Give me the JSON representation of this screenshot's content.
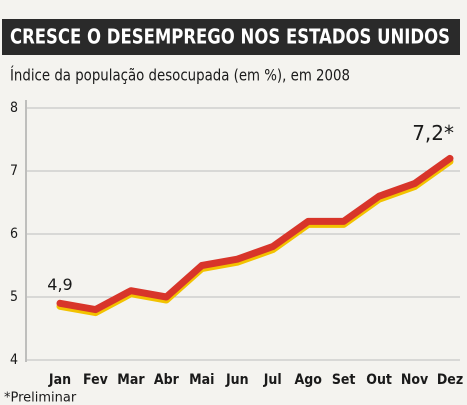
{
  "chart_data": {
    "type": "line",
    "title": "CRESCE O DESEMPREGO NOS ESTADOS UNIDOS",
    "subtitle": "Índice da população desocupada (em %), em 2008",
    "note": "*Preliminar",
    "categories": [
      "Jan",
      "Fev",
      "Mar",
      "Abr",
      "Mai",
      "Jun",
      "Jul",
      "Ago",
      "Set",
      "Out",
      "Nov",
      "Dez"
    ],
    "values": [
      4.9,
      4.8,
      5.1,
      5.0,
      5.5,
      5.6,
      5.8,
      6.2,
      6.2,
      6.6,
      6.8,
      7.2
    ],
    "value_labels": [
      "4,9",
      null,
      null,
      null,
      null,
      null,
      null,
      null,
      null,
      null,
      null,
      "7,2*"
    ],
    "color": "#d8352a",
    "ylim": [
      4,
      8
    ],
    "yticks": [
      4,
      5,
      6,
      7,
      8
    ],
    "grid": true
  }
}
